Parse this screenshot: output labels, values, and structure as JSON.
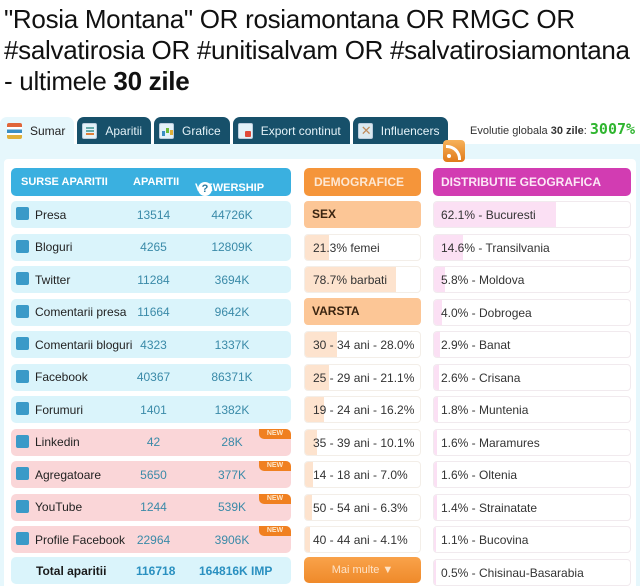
{
  "title": {
    "query": "\"Rosia Montana\" OR rosiamontana OR RMGC OR #salvatirosia OR #unitisalvam OR #salvatirosiamontana - ultimele ",
    "days": "30 zile"
  },
  "tabs": [
    {
      "label": "Sumar",
      "icon": "summary-icon",
      "active": true
    },
    {
      "label": "Aparitii",
      "icon": "list-icon",
      "active": false
    },
    {
      "label": "Grafice",
      "icon": "chart-icon",
      "active": false
    },
    {
      "label": "Export continut",
      "icon": "export-icon",
      "active": false
    },
    {
      "label": "Influencers",
      "icon": "influencers-icon",
      "active": false
    }
  ],
  "evolutie": {
    "label": "Evolutie globala",
    "period": "30 zile",
    "colon": ":",
    "value": "3007%"
  },
  "sources": {
    "headers": {
      "source": "SURSE APARITII",
      "count": "APARITII",
      "viewership": "VIEWERSHIP",
      "help": "?"
    },
    "rows": [
      {
        "name": "Presa",
        "count": "13514",
        "viewership": "44726K",
        "icon": "press-icon",
        "new": false
      },
      {
        "name": "Bloguri",
        "count": "4265",
        "viewership": "12809K",
        "icon": "blog-icon",
        "new": false
      },
      {
        "name": "Twitter",
        "count": "11284",
        "viewership": "3694K",
        "icon": "twitter-icon",
        "new": false
      },
      {
        "name": "Comentarii presa",
        "count": "11664",
        "viewership": "9642K",
        "icon": "press-comment-icon",
        "new": false
      },
      {
        "name": "Comentarii bloguri",
        "count": "4323",
        "viewership": "1337K",
        "icon": "blog-comment-icon",
        "new": false
      },
      {
        "name": "Facebook",
        "count": "40367",
        "viewership": "86371K",
        "icon": "facebook-icon",
        "new": false
      },
      {
        "name": "Forumuri",
        "count": "1401",
        "viewership": "1382K",
        "icon": "forum-icon",
        "new": false
      },
      {
        "name": "Linkedin",
        "count": "42",
        "viewership": "28K",
        "icon": "linkedin-icon",
        "new": true
      },
      {
        "name": "Agregatoare",
        "count": "5650",
        "viewership": "377K",
        "icon": "aggregator-icon",
        "new": true
      },
      {
        "name": "YouTube",
        "count": "1244",
        "viewership": "539K",
        "icon": "youtube-icon",
        "new": true
      },
      {
        "name": "Profile Facebook",
        "count": "22964",
        "viewership": "3906K",
        "icon": "facebook-profile-icon",
        "new": true
      }
    ],
    "new_badge": "NEW",
    "total": {
      "label": "Total aparitii",
      "count": "116718",
      "viewership": "164816K IMP"
    }
  },
  "demografice": {
    "header": "DEMOGRAFICE",
    "sex_label": "SEX",
    "sex": [
      {
        "text": "21.3% femei",
        "pct": 21.3
      },
      {
        "text": "78.7% barbati",
        "pct": 78.7
      }
    ],
    "age_label": "VARSTA",
    "age": [
      {
        "text": "30 - 34 ani - 28.0%",
        "pct": 28.0
      },
      {
        "text": "25 - 29 ani - 21.1%",
        "pct": 21.1
      },
      {
        "text": "19 - 24 ani - 16.2%",
        "pct": 16.2
      },
      {
        "text": "35 - 39 ani - 10.1%",
        "pct": 10.1
      },
      {
        "text": "14 - 18 ani - 7.0%",
        "pct": 7.0
      },
      {
        "text": "50 - 54 ani - 6.3%",
        "pct": 6.3
      },
      {
        "text": "40 - 44 ani - 4.1%",
        "pct": 4.1
      }
    ],
    "more_button": "Mai multe ▼"
  },
  "geo": {
    "header": "DISTRIBUTIE GEOGRAFICA",
    "rows": [
      {
        "text": "62.1% - Bucuresti",
        "pct": 62.1
      },
      {
        "text": "14.6% - Transilvania",
        "pct": 14.6
      },
      {
        "text": "5.8% - Moldova",
        "pct": 5.8
      },
      {
        "text": "4.0% - Dobrogea",
        "pct": 4.0
      },
      {
        "text": "2.9% - Banat",
        "pct": 2.9
      },
      {
        "text": "2.6% - Crisana",
        "pct": 2.6
      },
      {
        "text": "1.8% - Muntenia",
        "pct": 1.8
      },
      {
        "text": "1.6% - Maramures",
        "pct": 1.6
      },
      {
        "text": "1.6% - Oltenia",
        "pct": 1.6
      },
      {
        "text": "1.4% - Strainatate",
        "pct": 1.4
      },
      {
        "text": "1.1% - Bucovina",
        "pct": 1.1
      },
      {
        "text": "0.5% - Chisinau-Basarabia",
        "pct": 0.5
      }
    ]
  },
  "colors": {
    "sources_header": "#3ab0e0",
    "demo_header": "#f5953a",
    "geo_header": "#d23cb2",
    "tab_dark": "#17506a",
    "evolutie_green": "#2fb52f",
    "new_badge": "#f08020"
  }
}
